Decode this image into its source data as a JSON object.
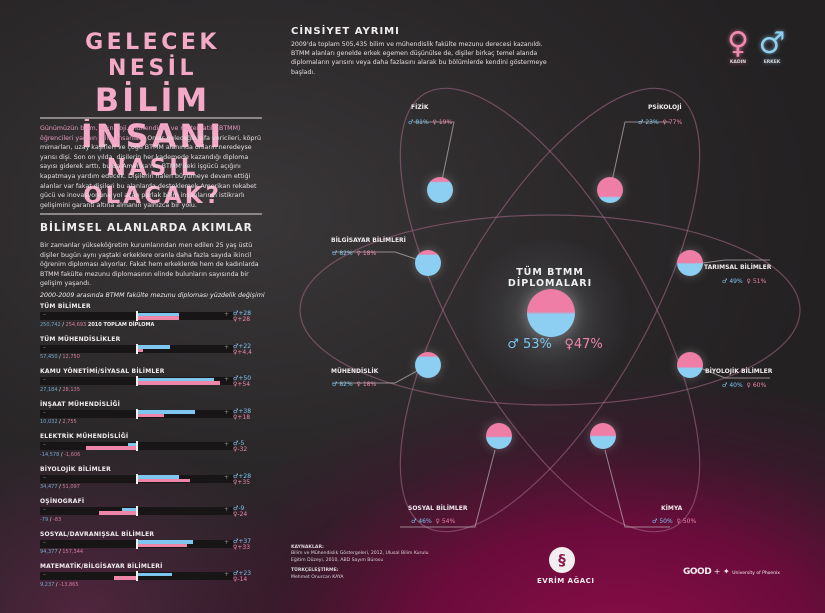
{
  "title": {
    "line1": "GELECEK NESİL",
    "line2": "BİLİM İNSANI",
    "line3": "NASIL OLACAK?"
  },
  "intro": {
    "highlight": "Günümüzün bilim, teknoloji, mühendislik ve matematik (BTMM) öğrencileri yarının bilim insanları.",
    "text": " Onlar geleceğin şifa vericileri, köprü mimarları, uzay kaşifleri ve çoğu BTMM alanında onların neredeyse yarısı dişi. Son on yılda, dişilerin her kademede kazandığı diploma sayısı giderek arttı, bu da Amerika'nın BTMM'deki işgücü açığını kapatmaya yardım edecek. Dişilerin halen büyümeye devam ettiği alanlar var fakat dişileri bu alanlarda desteklemek Amerikan rekabet gücü ve inovasyonuna yol açan parlak bilim insanlarının istikrarlı gelişimini garanti altına almanın yalnızca bir yolu."
  },
  "trends": {
    "title": "BİLİMSEL ALANLARDA AKIMLAR",
    "body": "Bir zamanlar yükseköğretim kurumlarından men edilen 25 yaş üstü dişiler bugün aynı yaştaki erkeklere oranla daha fazla sayıda ikincil öğrenim diploması alıyorlar. Fakat hem erkeklerde hem de kadınlarda BTMM fakülte mezunu diplomasının elinde bulunların sayısında bir gelişim yaşandı.",
    "subtitle": "2000-2009 arasında BTMM fakülte mezunu diploması yüzdelik değişimi",
    "minus": "–",
    "plus": "+",
    "total_suffix": "2010 TOPLAM DİPLOMA",
    "items": [
      {
        "label": "TÜM BİLİMLER",
        "male_pct": "+28",
        "female_pct": "+28",
        "male_count": "250,742",
        "female_count": "254,693",
        "m": 28,
        "f": 28
      },
      {
        "label": "TÜM MÜHENDİSLİKLER",
        "male_pct": "+22",
        "female_pct": "+4,4",
        "male_count": "57,450",
        "female_count": "12,750",
        "m": 22,
        "f": 4.4
      },
      {
        "label": "KAMU YÖNETİMİ/SİYASAL BİLİMLER",
        "male_pct": "+50",
        "female_pct": "+54",
        "male_count": "27,184",
        "female_count": "28,135",
        "m": 50,
        "f": 54
      },
      {
        "label": "İNŞAAT MÜHENDİSLİĞİ",
        "male_pct": "+38",
        "female_pct": "+18",
        "male_count": "10,032",
        "female_count": "2,755",
        "m": 38,
        "f": 18
      },
      {
        "label": "ELEKTRİK MÜHENDİSLİĞİ",
        "male_pct": "-5",
        "female_pct": "-32",
        "male_count": "-14,578",
        "female_count": "-1,606",
        "m": -5,
        "f": -32
      },
      {
        "label": "BİYOLOJİK BİLİMLER",
        "male_pct": "+28",
        "female_pct": "+35",
        "male_count": "34,477",
        "female_count": "51,097",
        "m": 28,
        "f": 35
      },
      {
        "label": "OŞİNOGRAFİ",
        "male_pct": "-9",
        "female_pct": "-24",
        "male_count": "-79",
        "female_count": "-83",
        "m": -9,
        "f": -24
      },
      {
        "label": "SOSYAL/DAVRANIŞSAL BİLİMLER",
        "male_pct": "+37",
        "female_pct": "+33",
        "male_count": "94,377",
        "female_count": "157,344",
        "m": 37,
        "f": 33
      },
      {
        "label": "MATEMATİK/BİLGİSAYAR BİLİMLERİ",
        "male_pct": "+23",
        "female_pct": "-14",
        "male_count": "9,237",
        "female_count": "-13,865",
        "m": 23,
        "f": -14
      }
    ]
  },
  "gender": {
    "title": "CİNSİYET AYRIMI",
    "body": "2009'da toplam 505,435 bilim ve mühendislik fakülte mezunu derecesi kazanıldı. BTMM alanları genelde erkek egemen düşünülse de, dişiler birkaç temel alanda diplomaların yarısını veya daha fazlasını alarak bu bölümlerde kendini göstermeye başladı.",
    "legend": {
      "female_label": "KADIN",
      "male_label": "ERKEK",
      "female_symbol": "♀",
      "male_symbol": "♂"
    },
    "center": {
      "title": "TÜM BTMM DİPLOMALARI",
      "male": "53%",
      "female": "47%"
    },
    "fields": [
      {
        "label": "FİZİK",
        "male": "81%",
        "female": "19%"
      },
      {
        "label": "PSİKOLOJİ",
        "male": "23%",
        "female": "77%"
      },
      {
        "label": "BİLGİSAYAR BİLİMLERİ",
        "male": "82%",
        "female": "18%"
      },
      {
        "label": "TARIMSAL BİLİMLER",
        "male": "49%",
        "female": "51%"
      },
      {
        "label": "MÜHENDİSLİK",
        "male": "82%",
        "female": "18%"
      },
      {
        "label": "BİYOLOJİK BİLİMLER",
        "male": "40%",
        "female": "60%"
      },
      {
        "label": "SOSYAL BİLİMLER",
        "male": "46%",
        "female": "54%"
      },
      {
        "label": "KİMYA",
        "male": "50%",
        "female": "50%"
      }
    ]
  },
  "footer": {
    "sources_title": "KAYNAKLAR:",
    "sources_line1": "Bilim ve Mühendislik Göstergeleri, 2012, Ulusal Bilim Kurulu",
    "sources_line2": "Eğitim Düzeyi, 2010, ABD Sayım Bürosu",
    "translation_title": "TÜRKÇELEŞTİRME:",
    "translator": "Mehmet Onurcan KAYA",
    "logo_evrim": "EVRİM AĞACI",
    "logo_good": "GOOD",
    "logo_plus": "+",
    "logo_phoenix": "University of Phoenix"
  },
  "colors": {
    "male": "#7cc6ef",
    "female": "#ee86aa",
    "title_pink": "#f4a9c7",
    "magenta_bg": "#8a0d48"
  }
}
